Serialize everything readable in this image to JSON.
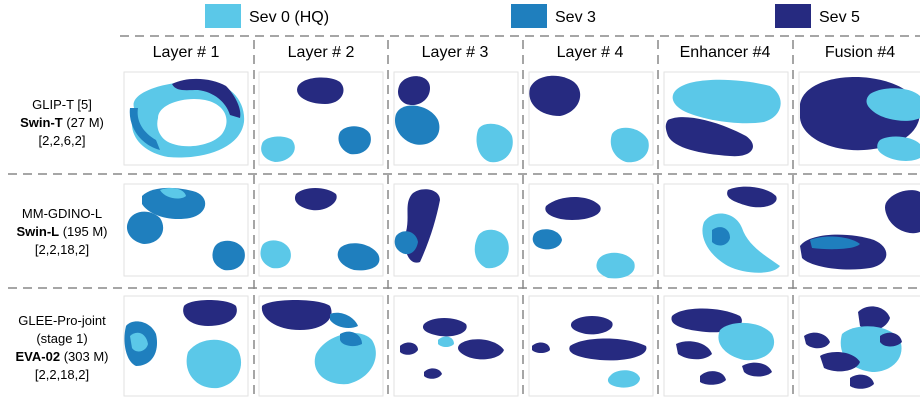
{
  "legend": [
    {
      "label": "Sev 0 (HQ)",
      "color": "#5bc8e8"
    },
    {
      "label": "Sev 3",
      "color": "#1f7fbe"
    },
    {
      "label": "Sev 5",
      "color": "#262a80"
    }
  ],
  "columns": [
    "Layer # 1",
    "Layer # 2",
    "Layer # 3",
    "Layer # 4",
    "Enhancer #4",
    "Fusion #4"
  ],
  "rows": [
    {
      "model": "GLIP-T [5]",
      "backbone": "Swin-T",
      "params": " (27 M)",
      "depths": "[2,2,6,2]"
    },
    {
      "model": "MM-GDINO-L",
      "backbone": "Swin-L",
      "params": " (195 M)",
      "depths": "[2,2,18,2]"
    },
    {
      "model": "GLEE-Pro-joint",
      "note": "(stage 1)",
      "backbone": "EVA-02",
      "params": " (303 M)",
      "depths": "[2,2,18,2]"
    }
  ]
}
